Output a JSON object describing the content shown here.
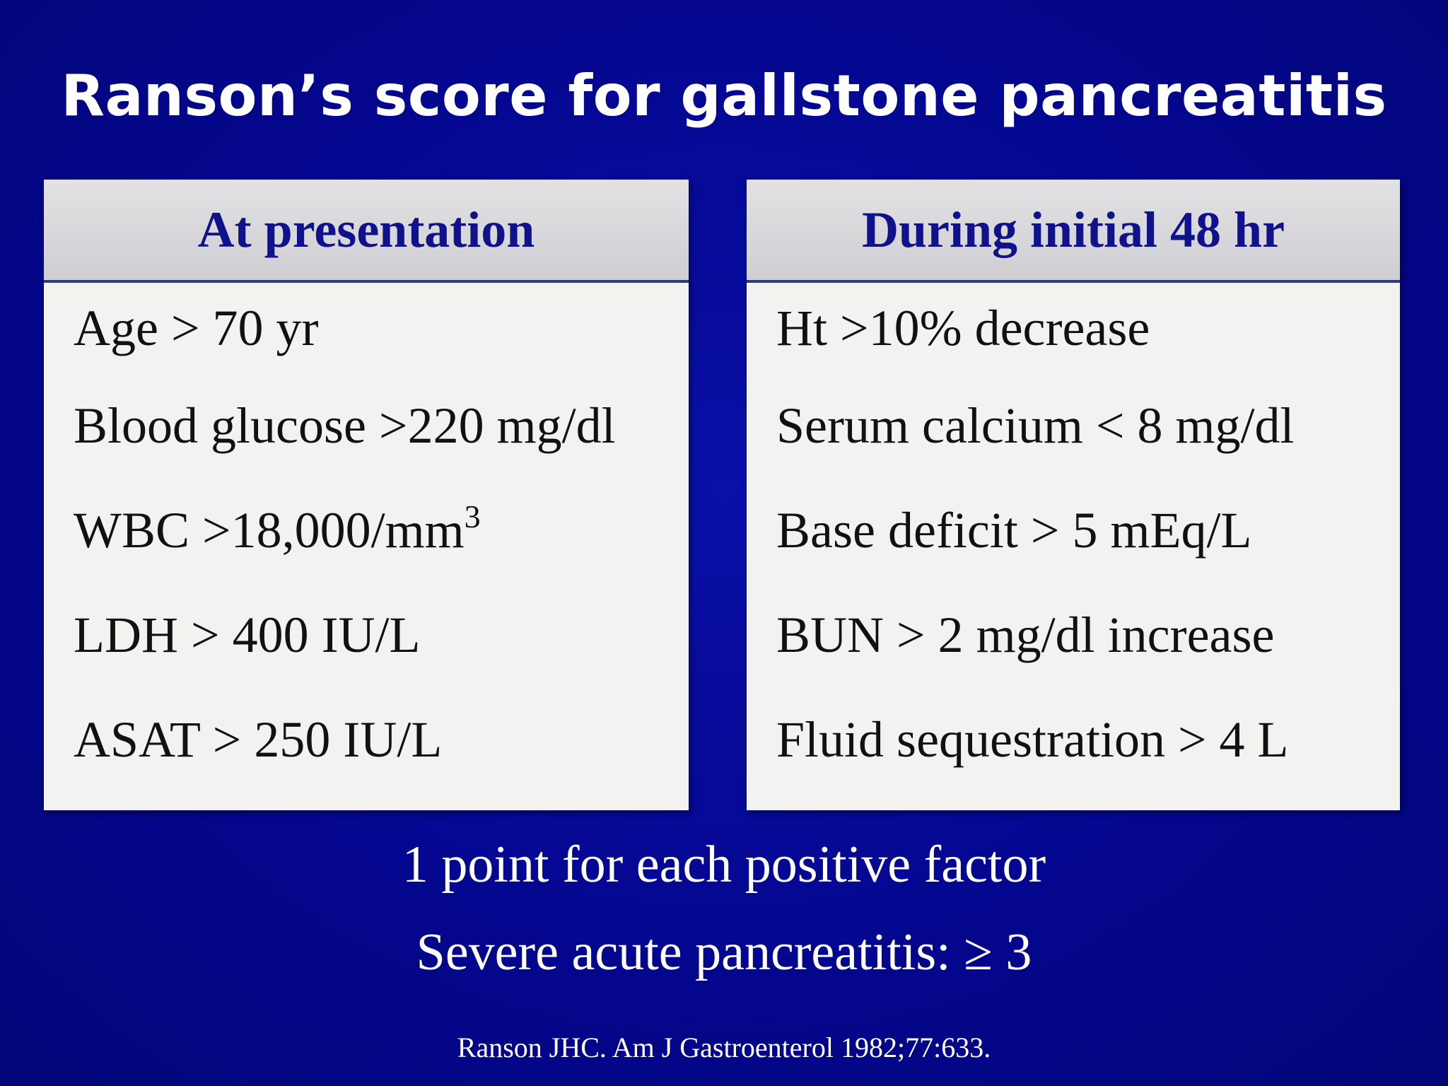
{
  "title": "Ranson’s score for gallstone pancreatitis",
  "panels": {
    "left": {
      "header": "At presentation",
      "items": [
        "Age > 70 yr",
        "Blood glucose >220 mg/dl",
        "WBC >18,000/mm",
        "LDH  > 400 IU/L",
        "ASAT > 250 IU/L"
      ],
      "wbc_superscript": "3"
    },
    "right": {
      "header": "During initial 48 hr",
      "items": [
        "Ht >10% decrease",
        "Serum calcium < 8 mg/dl",
        "Base deficit > 5 mEq/L",
        "BUN > 2 mg/dl increase",
        "Fluid sequestration > 4 L"
      ]
    }
  },
  "footer": {
    "line1": "1 point for each positive factor",
    "line2": "Severe acute pancreatitis: ≥ 3"
  },
  "citation": "Ranson JHC. Am J Gastroenterol  1982;77:633.",
  "colors": {
    "background": "#04078f",
    "header_text": "#10128c",
    "panel_background": "#f2f3f0"
  }
}
